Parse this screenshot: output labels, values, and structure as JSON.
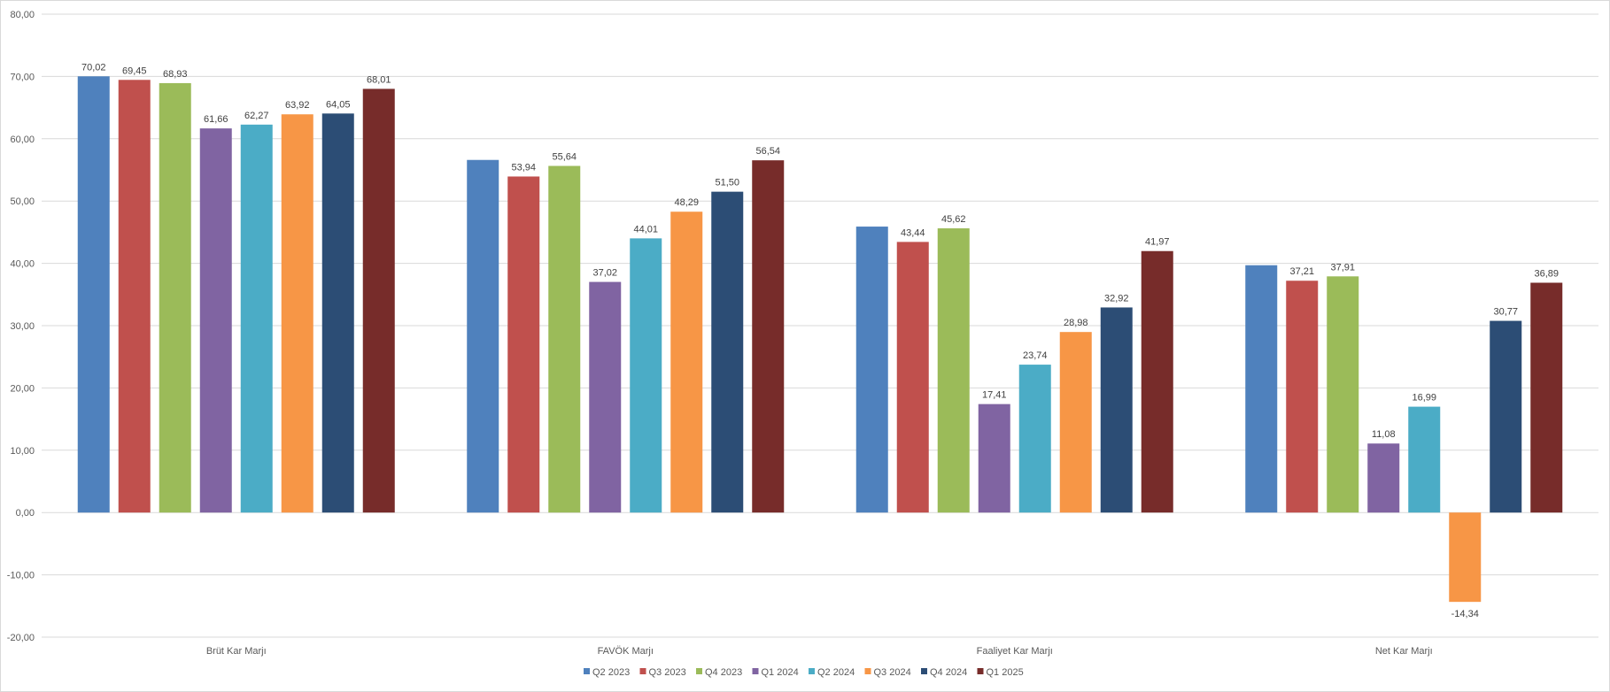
{
  "chart_data": {
    "type": "bar",
    "title": "",
    "xlabel": "",
    "ylabel": "",
    "ylim": [
      -20,
      80
    ],
    "y_ticks": [
      "80,00",
      "70,00",
      "60,00",
      "50,00",
      "40,00",
      "30,00",
      "20,00",
      "10,00",
      "0,00",
      "-10,00",
      "-20,00"
    ],
    "y_tick_values": [
      80,
      70,
      60,
      50,
      40,
      30,
      20,
      10,
      0,
      -10,
      -20
    ],
    "grid": true,
    "legend_position": "bottom",
    "categories": [
      "Brüt Kar Marjı",
      "FAVÖK Marjı",
      "Faaliyet Kar Marjı",
      "Net Kar Marjı"
    ],
    "series": [
      {
        "name": "Q2 2023",
        "color": "#4F81BD",
        "values": [
          70.02,
          56.6,
          45.9,
          39.7
        ],
        "labels": [
          "70,02",
          "",
          "",
          ""
        ]
      },
      {
        "name": "Q3 2023",
        "color": "#C0504D",
        "values": [
          69.45,
          53.94,
          43.44,
          37.21
        ],
        "labels": [
          "69,45",
          "53,94",
          "43,44",
          "37,21"
        ]
      },
      {
        "name": "Q4 2023",
        "color": "#9BBB59",
        "values": [
          68.93,
          55.64,
          45.62,
          37.91
        ],
        "labels": [
          "68,93",
          "55,64",
          "45,62",
          "37,91"
        ]
      },
      {
        "name": "Q1 2024",
        "color": "#8064A2",
        "values": [
          61.66,
          37.02,
          17.41,
          11.08
        ],
        "labels": [
          "61,66",
          "37,02",
          "17,41",
          "11,08"
        ]
      },
      {
        "name": "Q2 2024",
        "color": "#4BACC6",
        "values": [
          62.27,
          44.01,
          23.74,
          16.99
        ],
        "labels": [
          "62,27",
          "44,01",
          "23,74",
          "16,99"
        ]
      },
      {
        "name": "Q3 2024",
        "color": "#F79646",
        "values": [
          63.92,
          48.29,
          28.98,
          -14.34
        ],
        "labels": [
          "63,92",
          "48,29",
          "28,98",
          "-14,34"
        ]
      },
      {
        "name": "Q4 2024",
        "color": "#2C4D75",
        "values": [
          64.05,
          51.5,
          32.92,
          30.77
        ],
        "labels": [
          "64,05",
          "51,50",
          "32,92",
          "30,77"
        ]
      },
      {
        "name": "Q1 2025",
        "color": "#772C2A",
        "values": [
          68.01,
          56.54,
          41.97,
          36.89
        ],
        "labels": [
          "68,01",
          "56,54",
          "41,97",
          "36,89"
        ]
      }
    ]
  }
}
